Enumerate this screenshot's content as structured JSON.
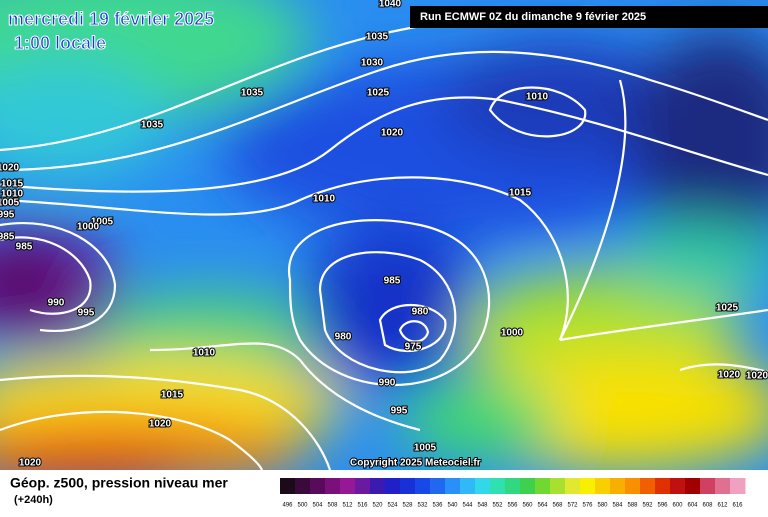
{
  "header": {
    "title": "mercredi 19 février 2025",
    "subtitle": "1:00 locale",
    "run": "Run ECMWF 0Z du dimanche 9 février 2025"
  },
  "copyright": "Copyright 2025 Meteociel.fr",
  "footer": {
    "title": "Géop. z500, pression niveau mer",
    "lead": "(+240h)"
  },
  "isobar_labels": [
    "1040",
    "1035",
    "1030",
    "1025",
    "1020",
    "1035",
    "1035",
    "1020",
    "1015",
    "1010",
    "1005",
    "995",
    "985",
    "985",
    "1005",
    "1000",
    "990",
    "995",
    "1010",
    "1015",
    "1010",
    "985",
    "980",
    "980",
    "975",
    "990",
    "995",
    "1000",
    "1025",
    "1020",
    "1020",
    "1010",
    "1015",
    "1020",
    "1020",
    "1005"
  ],
  "colorbar": {
    "labels": [
      "496",
      "500",
      "504",
      "508",
      "512",
      "516",
      "520",
      "524",
      "528",
      "532",
      "536",
      "540",
      "544",
      "548",
      "552",
      "556",
      "560",
      "564",
      "568",
      "572",
      "576",
      "580",
      "584",
      "588",
      "592",
      "596",
      "600",
      "604",
      "608",
      "612",
      "616"
    ],
    "colors": [
      "#1a0a1a",
      "#3a0a3a",
      "#5a0a5a",
      "#7a107a",
      "#961896",
      "#6a1aa0",
      "#3a1ab0",
      "#2020c8",
      "#1830d8",
      "#1848e8",
      "#2068f0",
      "#2890f8",
      "#30b8f8",
      "#30d8e8",
      "#30e0b0",
      "#30d880",
      "#40d050",
      "#70d830",
      "#a8e030",
      "#e0e830",
      "#f8f000",
      "#f8d000",
      "#f8b000",
      "#f89000",
      "#f06000",
      "#e03000",
      "#c01010",
      "#a00000",
      "#d04060",
      "#e07090",
      "#f0a0c0"
    ]
  }
}
